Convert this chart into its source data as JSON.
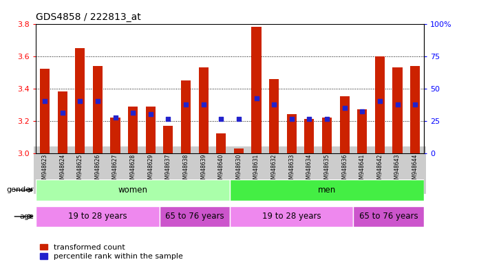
{
  "title": "GDS4858 / 222813_at",
  "samples": [
    "GSM948623",
    "GSM948624",
    "GSM948625",
    "GSM948626",
    "GSM948627",
    "GSM948628",
    "GSM948629",
    "GSM948637",
    "GSM948638",
    "GSM948639",
    "GSM948640",
    "GSM948630",
    "GSM948631",
    "GSM948632",
    "GSM948633",
    "GSM948634",
    "GSM948635",
    "GSM948636",
    "GSM948641",
    "GSM948642",
    "GSM948643",
    "GSM948644"
  ],
  "transformed_count": [
    3.52,
    3.38,
    3.65,
    3.54,
    3.22,
    3.29,
    3.29,
    3.17,
    3.45,
    3.53,
    3.12,
    3.03,
    3.78,
    3.46,
    3.24,
    3.21,
    3.22,
    3.35,
    3.27,
    3.6,
    3.53,
    3.54
  ],
  "percentile_rank_left": [
    3.32,
    3.25,
    3.32,
    3.32,
    3.22,
    3.25,
    3.24,
    3.21,
    3.3,
    3.3,
    3.21,
    3.21,
    3.34,
    3.3,
    3.21,
    3.21,
    3.21,
    3.28,
    3.26,
    3.32,
    3.3,
    3.3
  ],
  "ylim_left": [
    3.0,
    3.8
  ],
  "ylim_right": [
    0,
    100
  ],
  "yticks_left": [
    3.0,
    3.2,
    3.4,
    3.6,
    3.8
  ],
  "yticks_right": [
    0,
    25,
    50,
    75,
    100
  ],
  "ytick_right_labels": [
    "0",
    "25",
    "50",
    "75",
    "100%"
  ],
  "gender_groups": [
    {
      "label": "women",
      "start": 0,
      "end": 10,
      "color": "#aaffaa"
    },
    {
      "label": "men",
      "start": 11,
      "end": 21,
      "color": "#44ee44"
    }
  ],
  "age_groups": [
    {
      "label": "19 to 28 years",
      "start": 0,
      "end": 6,
      "color": "#ee88ee"
    },
    {
      "label": "65 to 76 years",
      "start": 7,
      "end": 10,
      "color": "#cc55cc"
    },
    {
      "label": "19 to 28 years",
      "start": 11,
      "end": 17,
      "color": "#ee88ee"
    },
    {
      "label": "65 to 76 years",
      "start": 18,
      "end": 21,
      "color": "#cc55cc"
    }
  ],
  "bar_color": "#cc2200",
  "dot_color": "#2222cc",
  "background_color": "#ffffff",
  "plot_bg_color": "#ffffff",
  "tick_label_bg": "#cccccc",
  "legend_items": [
    "transformed count",
    "percentile rank within the sample"
  ]
}
